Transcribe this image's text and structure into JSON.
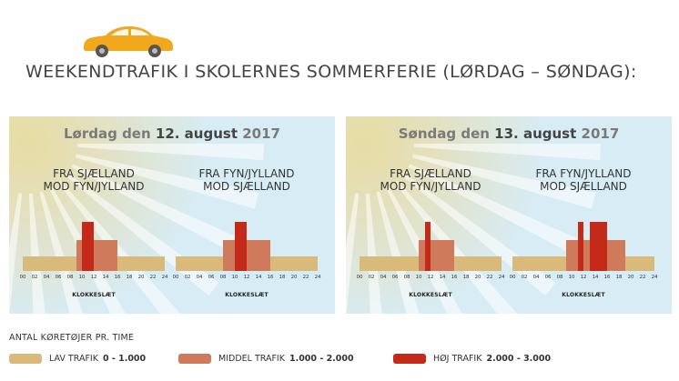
{
  "headline": "WEEKENDTRAFIK I SKOLERNES SOMMERFERIE (LØRDAG – SØNDAG):",
  "colors": {
    "low": "#d9ba7a",
    "medium": "#cf7a5a",
    "high": "#c42a1a",
    "car": "#f2a81d",
    "sky": "#d7ecf5"
  },
  "panels": [
    {
      "title_pre": "Lørdag den ",
      "title_bold": "12. august",
      "title_post": " 2017",
      "directions": [
        {
          "line1": "FRA SJÆLLAND",
          "line2": "MOD FYN/JYLLAND",
          "segments": [
            {
              "start": 0,
              "end": 9,
              "level": "low"
            },
            {
              "start": 9,
              "end": 10,
              "level": "medium"
            },
            {
              "start": 10,
              "end": 12,
              "level": "high"
            },
            {
              "start": 12,
              "end": 16,
              "level": "medium"
            },
            {
              "start": 16,
              "end": 24,
              "level": "low"
            }
          ]
        },
        {
          "line1": "FRA FYN/JYLLAND",
          "line2": "MOD SJÆLLAND",
          "segments": [
            {
              "start": 0,
              "end": 8,
              "level": "low"
            },
            {
              "start": 8,
              "end": 10,
              "level": "medium"
            },
            {
              "start": 10,
              "end": 12,
              "level": "high"
            },
            {
              "start": 12,
              "end": 16,
              "level": "medium"
            },
            {
              "start": 16,
              "end": 24,
              "level": "low"
            }
          ]
        }
      ]
    },
    {
      "title_pre": "Søndag den ",
      "title_bold": "13. august",
      "title_post": " 2017",
      "directions": [
        {
          "line1": "FRA SJÆLLAND",
          "line2": "MOD FYN/JYLLAND",
          "segments": [
            {
              "start": 0,
              "end": 10,
              "level": "low"
            },
            {
              "start": 10,
              "end": 11,
              "level": "medium"
            },
            {
              "start": 11,
              "end": 12,
              "level": "high"
            },
            {
              "start": 12,
              "end": 16,
              "level": "medium"
            },
            {
              "start": 16,
              "end": 24,
              "level": "low"
            }
          ]
        },
        {
          "line1": "FRA FYN/JYLLAND",
          "line2": "MOD SJÆLLAND",
          "segments": [
            {
              "start": 0,
              "end": 9,
              "level": "low"
            },
            {
              "start": 9,
              "end": 11,
              "level": "medium"
            },
            {
              "start": 11,
              "end": 12,
              "level": "high"
            },
            {
              "start": 12,
              "end": 13,
              "level": "medium"
            },
            {
              "start": 13,
              "end": 16,
              "level": "high"
            },
            {
              "start": 16,
              "end": 19,
              "level": "medium"
            },
            {
              "start": 19,
              "end": 24,
              "level": "low"
            }
          ]
        }
      ]
    }
  ],
  "ticks": [
    "00",
    "02",
    "04",
    "06",
    "08",
    "10",
    "12",
    "14",
    "16",
    "18",
    "20",
    "22",
    "24"
  ],
  "xlabel": "KLOKKESLÆT",
  "legend": {
    "title": "ANTAL KØRETØJER PR. TIME",
    "items": [
      {
        "key": "low",
        "label": "LAV TRAFIK",
        "range": "0 - 1.000"
      },
      {
        "key": "medium",
        "label": "MIDDEL TRAFIK",
        "range": "1.000 - 2.000"
      },
      {
        "key": "high",
        "label": "HØJ TRAFIK",
        "range": "2.000 - 3.000"
      }
    ]
  }
}
